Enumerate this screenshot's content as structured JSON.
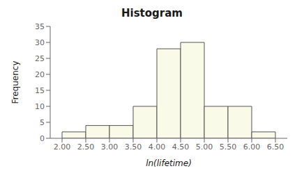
{
  "chart_data": {
    "type": "histogram",
    "title": "Histogram",
    "xlabel": "ln(lifetime)",
    "ylabel": "Frequency",
    "bins": [
      2.0,
      2.5,
      3.0,
      3.5,
      4.0,
      4.5,
      5.0,
      5.5,
      6.0,
      6.5
    ],
    "values": [
      2,
      4,
      4,
      10,
      28,
      30,
      10,
      10,
      2
    ],
    "color": "#FAFAE8",
    "xlim": [
      1.75,
      6.75
    ],
    "ylim": [
      0,
      35
    ],
    "xticks": [
      {
        "value": 2.0,
        "label": "2.00"
      },
      {
        "value": 2.5,
        "label": "2.50"
      },
      {
        "value": 3.0,
        "label": "3.00"
      },
      {
        "value": 3.5,
        "label": "3.50"
      },
      {
        "value": 4.0,
        "label": "4.00"
      },
      {
        "value": 4.5,
        "label": "4.50"
      },
      {
        "value": 5.0,
        "label": "5.00"
      },
      {
        "value": 5.5,
        "label": "5.50"
      },
      {
        "value": 6.0,
        "label": "6.00"
      },
      {
        "value": 6.5,
        "label": "6.50"
      }
    ],
    "yticks": [
      0,
      5,
      10,
      15,
      20,
      25,
      30,
      35
    ]
  }
}
